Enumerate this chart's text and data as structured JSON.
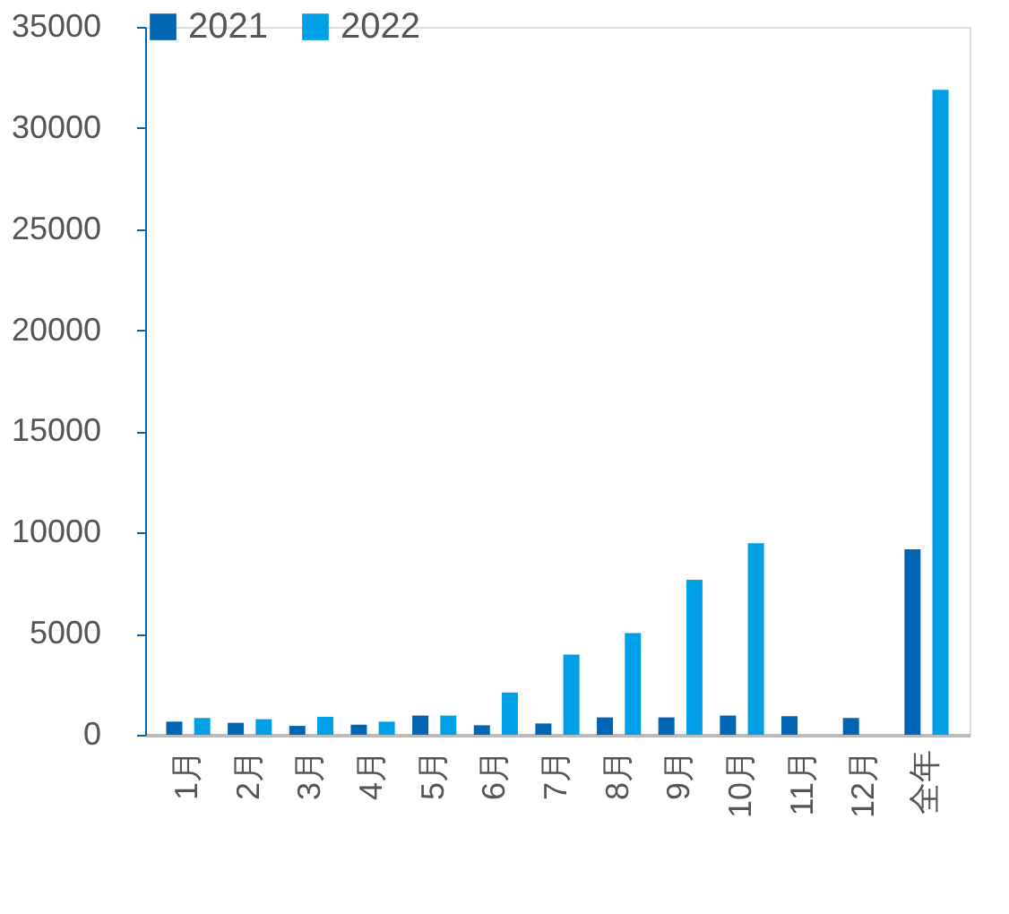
{
  "chart_data": {
    "type": "bar",
    "categories": [
      "1月",
      "2月",
      "3月",
      "4月",
      "5月",
      "6月",
      "7月",
      "8月",
      "9月",
      "10月",
      "11月",
      "12月",
      "全年"
    ],
    "series": [
      {
        "name": "2021",
        "color": "#0066b3",
        "values": [
          650,
          590,
          440,
          500,
          950,
          470,
          560,
          860,
          860,
          950,
          920,
          830,
          9170
        ]
      },
      {
        "name": "2022",
        "color": "#00a0e6",
        "values": [
          830,
          770,
          890,
          650,
          950,
          2090,
          3960,
          5030,
          7660,
          9470,
          null,
          null,
          31890
        ]
      }
    ],
    "ylim": [
      0,
      35000
    ],
    "yticks": [
      0,
      5000,
      10000,
      15000,
      20000,
      25000,
      30000,
      35000
    ],
    "grid": false,
    "legend": "top"
  }
}
